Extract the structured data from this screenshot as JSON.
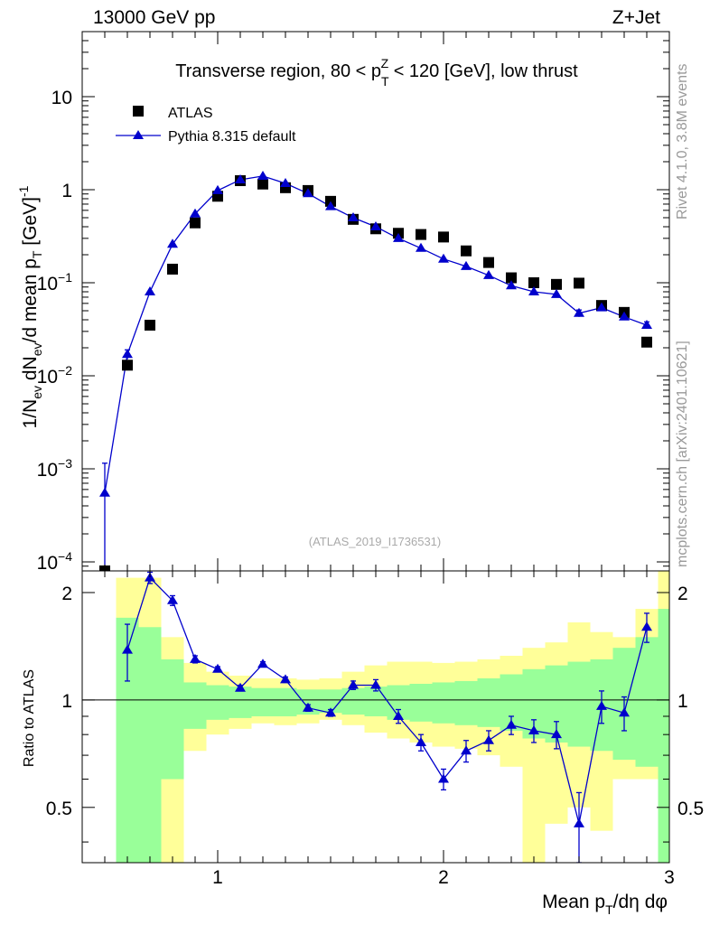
{
  "header": {
    "left": "13000 GeV pp",
    "right": "Z+Jet"
  },
  "side": {
    "rivet": "Rivet 4.1.0,  3.8M events",
    "mcplots": "mcplots.cern.ch [arXiv:2401.10621]"
  },
  "chart_data": [
    {
      "type": "scatter",
      "title": "Transverse region, 80 < p_T^Z < 120 [GeV], low thrust",
      "title_parts": {
        "pre": "Transverse region, 80 < p",
        "sub": "T",
        "sup": "Z",
        "post": " < 120 [GeV], low thrust"
      },
      "ylabel": "1/N_ev dN_ev/d mean p_T [GeV]^-1",
      "yscale": "log",
      "ylim": [
        8e-05,
        50
      ],
      "xlim": [
        0.4,
        3.0
      ],
      "y_ticks": [
        {
          "value": 0.0001,
          "base": "10",
          "exp": "−4"
        },
        {
          "value": 0.001,
          "base": "10",
          "exp": "−3"
        },
        {
          "value": 0.01,
          "base": "10",
          "exp": "−2"
        },
        {
          "value": 0.1,
          "base": "10",
          "exp": "−1"
        },
        {
          "value": 1,
          "base": "1",
          "exp": ""
        },
        {
          "value": 10,
          "base": "10",
          "exp": ""
        }
      ],
      "watermark": "(ATLAS_2019_I1736531)",
      "legend": [
        {
          "name": "ATLAS",
          "marker": "square",
          "color": "#000000"
        },
        {
          "name": "Pythia 8.315 default",
          "marker": "triangle",
          "color": "#0000cc"
        }
      ],
      "series": [
        {
          "name": "ATLAS",
          "x": [
            0.5,
            0.6,
            0.7,
            0.8,
            0.9,
            1.0,
            1.1,
            1.2,
            1.3,
            1.4,
            1.5,
            1.6,
            1.7,
            1.8,
            1.9,
            2.0,
            2.1,
            2.2,
            2.3,
            2.4,
            2.5,
            2.6,
            2.7,
            2.8,
            2.9
          ],
          "y": [
            8e-05,
            0.013,
            0.035,
            0.14,
            0.44,
            0.85,
            1.25,
            1.15,
            1.05,
            0.98,
            0.75,
            0.48,
            0.38,
            0.34,
            0.33,
            0.31,
            0.22,
            0.165,
            0.113,
            0.1,
            0.096,
            0.099,
            0.057,
            0.048,
            0.023
          ]
        },
        {
          "name": "Pythia 8.315 default",
          "x": [
            0.5,
            0.6,
            0.7,
            0.8,
            0.9,
            1.0,
            1.1,
            1.2,
            1.3,
            1.4,
            1.5,
            1.6,
            1.7,
            1.8,
            1.9,
            2.0,
            2.1,
            2.2,
            2.3,
            2.4,
            2.5,
            2.6,
            2.7,
            2.8,
            2.9
          ],
          "y": [
            0.00055,
            0.017,
            0.08,
            0.26,
            0.55,
            0.98,
            1.28,
            1.4,
            1.17,
            0.91,
            0.66,
            0.5,
            0.4,
            0.3,
            0.235,
            0.18,
            0.15,
            0.12,
            0.093,
            0.08,
            0.075,
            0.047,
            0.054,
            0.043,
            0.035
          ],
          "yerr_low": [
            0.00053,
            0.002,
            0,
            0,
            0,
            0,
            0,
            0,
            0,
            0,
            0,
            0,
            0,
            0,
            0,
            0,
            0,
            0,
            0,
            0,
            0,
            0.004,
            0.003,
            0.003,
            0.003
          ],
          "yerr_high": [
            0.0006,
            0.002,
            0,
            0,
            0,
            0,
            0,
            0,
            0,
            0,
            0,
            0,
            0,
            0,
            0,
            0,
            0,
            0,
            0,
            0,
            0,
            0.004,
            0.003,
            0.003,
            0.003
          ]
        }
      ]
    },
    {
      "type": "scatter",
      "ylabel": "Ratio to ATLAS",
      "xlabel": "Mean p_T/dη dφ",
      "xlabel_parts": {
        "pre": "Mean p",
        "sub": "T",
        "post": "/dη dφ"
      },
      "xlim": [
        0.4,
        3.0
      ],
      "ylim": [
        0.35,
        2.3
      ],
      "x_ticks": [
        {
          "value": 1,
          "label": "1"
        },
        {
          "value": 2,
          "label": "2"
        },
        {
          "value": 3,
          "label": "3"
        }
      ],
      "y_ticks": [
        {
          "value": 0.5,
          "label": "0.5"
        },
        {
          "value": 1,
          "label": "1"
        },
        {
          "value": 2,
          "label": "2"
        }
      ],
      "reference_line": 1.0,
      "bands": {
        "bin_edges": [
          0.55,
          0.65,
          0.75,
          0.85,
          0.95,
          1.05,
          1.15,
          1.25,
          1.35,
          1.45,
          1.55,
          1.65,
          1.75,
          1.85,
          1.95,
          2.05,
          2.15,
          2.25,
          2.35,
          2.45,
          2.55,
          2.65,
          2.75,
          2.85,
          2.95
        ],
        "green_low": [
          0.35,
          0.35,
          0.6,
          0.83,
          0.88,
          0.89,
          0.9,
          0.9,
          0.91,
          0.92,
          0.91,
          0.9,
          0.88,
          0.87,
          0.86,
          0.85,
          0.84,
          0.82,
          0.78,
          0.76,
          0.74,
          0.72,
          0.68,
          0.65,
          0.35
        ],
        "green_high": [
          1.7,
          1.6,
          1.3,
          1.12,
          1.1,
          1.09,
          1.08,
          1.08,
          1.07,
          1.07,
          1.08,
          1.09,
          1.1,
          1.11,
          1.12,
          1.13,
          1.15,
          1.18,
          1.22,
          1.25,
          1.28,
          1.3,
          1.4,
          1.5,
          1.8
        ],
        "yellow_low": [
          0.35,
          0.35,
          0.35,
          0.72,
          0.8,
          0.83,
          0.86,
          0.85,
          0.86,
          0.88,
          0.85,
          0.81,
          0.78,
          0.76,
          0.74,
          0.73,
          0.7,
          0.65,
          0.35,
          0.45,
          0.5,
          0.43,
          0.6,
          0.6,
          0.35
        ],
        "yellow_high": [
          2.2,
          2.2,
          1.5,
          1.27,
          1.2,
          1.17,
          1.15,
          1.15,
          1.14,
          1.15,
          1.2,
          1.25,
          1.28,
          1.28,
          1.27,
          1.28,
          1.3,
          1.33,
          1.4,
          1.45,
          1.65,
          1.55,
          1.5,
          1.8,
          2.3
        ]
      },
      "series": [
        {
          "name": "Pythia 8.315 default / ATLAS",
          "x": [
            0.6,
            0.7,
            0.8,
            0.9,
            1.0,
            1.1,
            1.2,
            1.3,
            1.4,
            1.5,
            1.6,
            1.7,
            1.8,
            1.9,
            2.0,
            2.1,
            2.2,
            2.3,
            2.4,
            2.5,
            2.6,
            2.7,
            2.8,
            2.9
          ],
          "y": [
            1.38,
            2.2,
            1.9,
            1.3,
            1.22,
            1.08,
            1.26,
            1.14,
            0.95,
            0.92,
            1.1,
            1.1,
            0.9,
            0.76,
            0.6,
            0.72,
            0.77,
            0.85,
            0.82,
            0.8,
            0.45,
            0.96,
            0.92,
            1.6
          ],
          "yerr": [
            0.25,
            0.08,
            0.06,
            0.03,
            0.02,
            0.02,
            0.02,
            0.02,
            0.02,
            0.02,
            0.03,
            0.04,
            0.04,
            0.04,
            0.04,
            0.05,
            0.05,
            0.05,
            0.06,
            0.07,
            0.1,
            0.1,
            0.1,
            0.15
          ]
        }
      ]
    }
  ]
}
